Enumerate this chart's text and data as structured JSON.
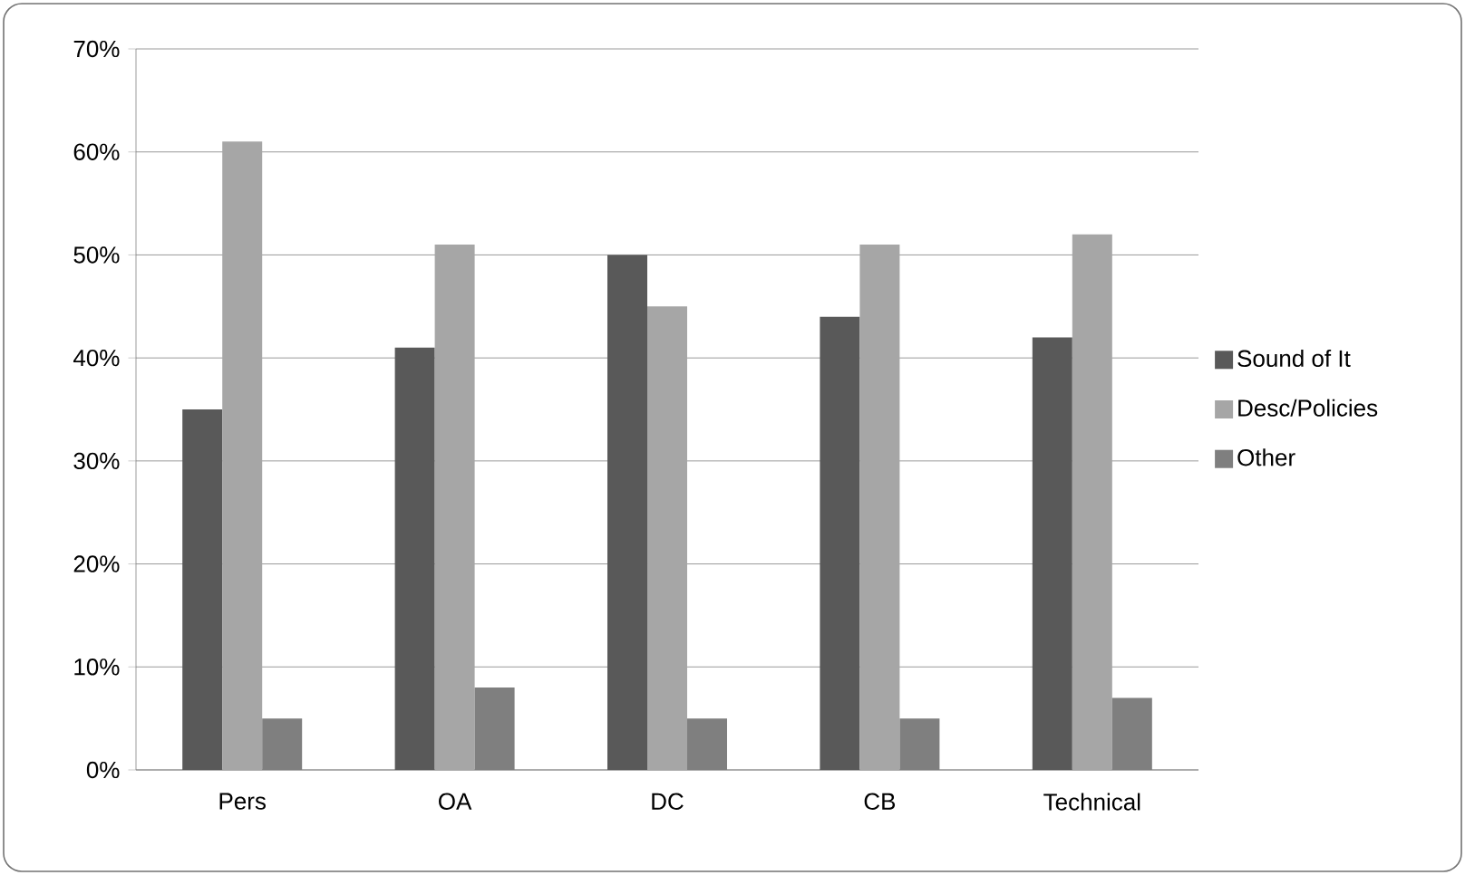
{
  "chart_data": {
    "type": "bar",
    "categories": [
      "Pers",
      "OA",
      "DC",
      "CB",
      "Technical"
    ],
    "series": [
      {
        "name": "Sound of It",
        "color": "#595959",
        "values": [
          35,
          41,
          50,
          44,
          42
        ]
      },
      {
        "name": "Desc/Policies",
        "color": "#a6a6a6",
        "values": [
          61,
          51,
          45,
          51,
          52
        ]
      },
      {
        "name": "Other",
        "color": "#7f7f7f",
        "values": [
          5,
          8,
          5,
          5,
          7
        ]
      }
    ],
    "ylim": [
      0,
      70
    ],
    "yticks": [
      {
        "value": 0,
        "label": "0%"
      },
      {
        "value": 10,
        "label": "10%"
      },
      {
        "value": 20,
        "label": "20%"
      },
      {
        "value": 30,
        "label": "30%"
      },
      {
        "value": 40,
        "label": "40%"
      },
      {
        "value": 50,
        "label": "50%"
      },
      {
        "value": 60,
        "label": "60%"
      },
      {
        "value": 70,
        "label": "70%"
      }
    ],
    "grid": "y",
    "legend": "right"
  }
}
